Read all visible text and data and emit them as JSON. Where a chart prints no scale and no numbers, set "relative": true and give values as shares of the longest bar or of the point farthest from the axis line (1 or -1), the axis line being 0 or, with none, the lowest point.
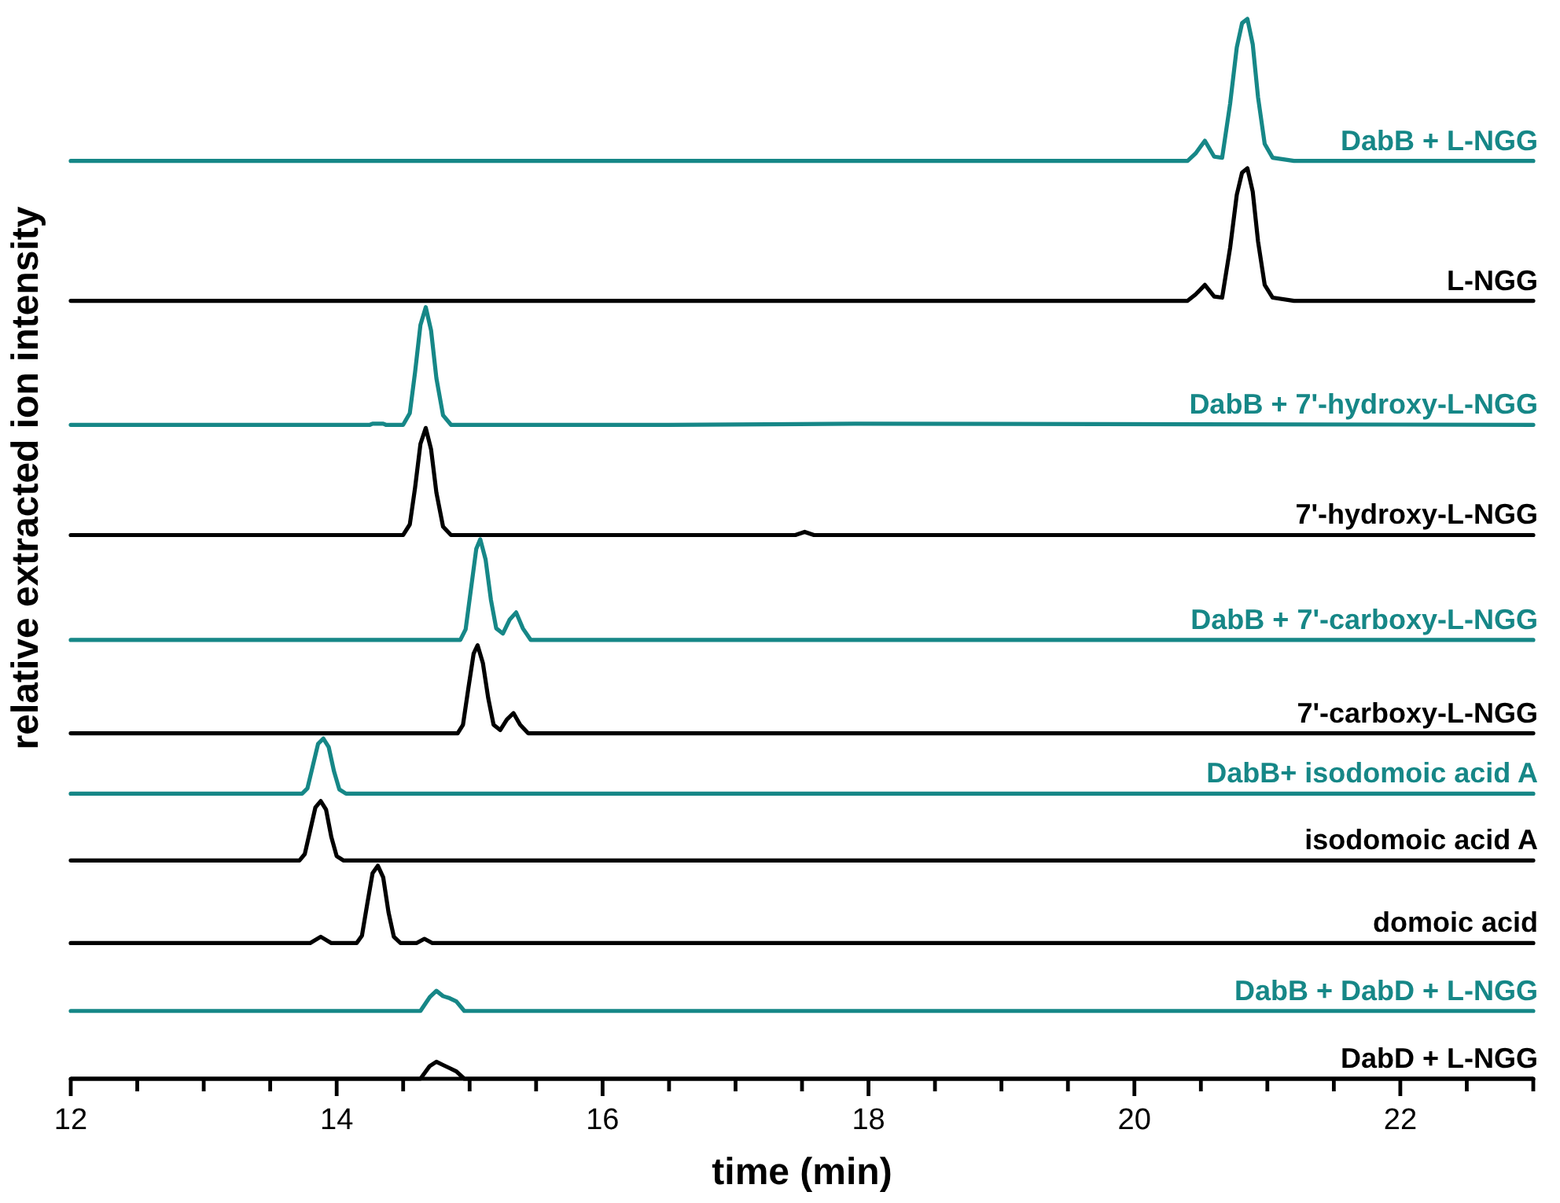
{
  "chart_data": {
    "type": "line",
    "relative": true,
    "xlim": [
      12,
      23
    ],
    "xticks": [
      12,
      {
        "value": 12.5,
        "label": null
      },
      {
        "value": 13,
        "label": null
      },
      {
        "value": 13.5,
        "label": null
      },
      14,
      {
        "value": 14.5,
        "label": null
      },
      {
        "value": 15,
        "label": null
      },
      {
        "value": 15.5,
        "label": null
      },
      16,
      {
        "value": 16.5,
        "label": null
      },
      {
        "value": 17,
        "label": null
      },
      {
        "value": 17.5,
        "label": null
      },
      18,
      {
        "value": 18.5,
        "label": null
      },
      {
        "value": 19,
        "label": null
      },
      {
        "value": 19.5,
        "label": null
      },
      20,
      {
        "value": 20.5,
        "label": null
      },
      {
        "value": 21,
        "label": null
      },
      {
        "value": 21.5,
        "label": null
      },
      22,
      {
        "value": 22.5,
        "label": null
      },
      {
        "value": 23,
        "label": null
      }
    ],
    "xlabel": "time (min)",
    "ylabel": "relative extracted ion intensity",
    "series": [
      {
        "name": "DabB + L-NGG",
        "color": "#168787",
        "x": [
          12,
          20.4,
          20.46,
          20.53,
          20.6,
          20.66,
          20.72,
          20.77,
          20.81,
          20.85,
          20.89,
          20.93,
          20.98,
          21.04,
          21.2,
          23
        ],
        "values": [
          0.866,
          0.866,
          0.873,
          0.885,
          0.87,
          0.869,
          0.92,
          0.973,
          0.996,
          1,
          0.976,
          0.926,
          0.882,
          0.869,
          0.866,
          0.866
        ]
      },
      {
        "name": "L-NGG",
        "color": "#000000",
        "x": [
          12,
          20.4,
          20.46,
          20.53,
          20.6,
          20.66,
          20.72,
          20.77,
          20.81,
          20.85,
          20.89,
          20.93,
          20.98,
          21.04,
          21.2,
          23
        ],
        "values": [
          0.734,
          0.734,
          0.74,
          0.749,
          0.738,
          0.737,
          0.784,
          0.834,
          0.855,
          0.859,
          0.837,
          0.79,
          0.749,
          0.737,
          0.734,
          0.734
        ]
      },
      {
        "name": "DabB + 7'-hydroxy-L-NGG",
        "color": "#168787",
        "x": [
          12,
          14.25,
          14.27,
          14.35,
          14.37,
          14.5,
          14.55,
          14.59,
          14.63,
          14.67,
          14.71,
          14.75,
          14.8,
          14.86,
          16.3,
          16.5,
          17.9,
          23
        ],
        "values": [
          0.617,
          0.617,
          0.618,
          0.618,
          0.617,
          0.617,
          0.628,
          0.667,
          0.711,
          0.728,
          0.706,
          0.661,
          0.626,
          0.617,
          0.617,
          0.617,
          0.618,
          0.617
        ]
      },
      {
        "name": "7'-hydroxy-L-NGG",
        "color": "#000000",
        "x": [
          12,
          14.5,
          14.55,
          14.59,
          14.63,
          14.67,
          14.71,
          14.75,
          14.8,
          14.86,
          17.45,
          17.52,
          17.59,
          23
        ],
        "values": [
          0.513,
          0.513,
          0.523,
          0.558,
          0.599,
          0.614,
          0.594,
          0.553,
          0.521,
          0.513,
          0.513,
          0.516,
          0.513,
          0.513
        ]
      },
      {
        "name": "DabB + 7'-carboxy-L-NGG",
        "color": "#168787",
        "x": [
          12,
          14.93,
          14.97,
          15.01,
          15.05,
          15.08,
          15.12,
          15.16,
          15.2,
          15.25,
          15.3,
          15.35,
          15.4,
          15.46,
          23
        ],
        "values": [
          0.414,
          0.414,
          0.424,
          0.462,
          0.5,
          0.509,
          0.49,
          0.452,
          0.425,
          0.42,
          0.433,
          0.44,
          0.425,
          0.414,
          0.414
        ]
      },
      {
        "name": "7'-carboxy-L-NGG",
        "color": "#000000",
        "x": [
          12,
          14.91,
          14.95,
          14.99,
          15.03,
          15.06,
          15.1,
          15.14,
          15.18,
          15.23,
          15.28,
          15.33,
          15.38,
          15.44,
          23
        ],
        "values": [
          0.326,
          0.326,
          0.334,
          0.368,
          0.401,
          0.409,
          0.392,
          0.359,
          0.334,
          0.329,
          0.339,
          0.345,
          0.334,
          0.326,
          0.326
        ]
      },
      {
        "name": "DabB+ isodomoic acid A",
        "color": "#168787",
        "x": [
          12,
          13.74,
          13.78,
          13.82,
          13.86,
          13.9,
          13.94,
          13.98,
          14.02,
          14.07,
          23
        ],
        "values": [
          0.269,
          0.269,
          0.274,
          0.295,
          0.316,
          0.321,
          0.313,
          0.29,
          0.273,
          0.269,
          0.269
        ]
      },
      {
        "name": "isodomoic acid A",
        "color": "#000000",
        "x": [
          12,
          13.72,
          13.76,
          13.8,
          13.84,
          13.88,
          13.92,
          13.96,
          14,
          14.05,
          23
        ],
        "values": [
          0.206,
          0.206,
          0.212,
          0.234,
          0.256,
          0.262,
          0.254,
          0.228,
          0.21,
          0.206,
          0.206
        ]
      },
      {
        "name": "domoic acid",
        "color": "#000000",
        "x": [
          12,
          13.8,
          13.88,
          13.96,
          14.15,
          14.19,
          14.23,
          14.27,
          14.31,
          14.35,
          14.39,
          14.43,
          14.48,
          14.6,
          14.66,
          14.72,
          14.85,
          23
        ],
        "values": [
          0.128,
          0.128,
          0.134,
          0.128,
          0.128,
          0.135,
          0.165,
          0.194,
          0.201,
          0.19,
          0.157,
          0.134,
          0.128,
          0.128,
          0.132,
          0.128,
          0.128,
          0.128
        ]
      },
      {
        "name": "DabB + DabD + L-NGG",
        "color": "#168787",
        "x": [
          12,
          14.63,
          14.7,
          14.75,
          14.8,
          14.85,
          14.9,
          14.96,
          23
        ],
        "values": [
          0.064,
          0.064,
          0.077,
          0.083,
          0.078,
          0.076,
          0.073,
          0.064,
          0.064
        ]
      },
      {
        "name": "DabD + L-NGG",
        "color": "#000000",
        "x": [
          12,
          14.63,
          14.7,
          14.75,
          14.8,
          14.85,
          14.9,
          14.96,
          23
        ],
        "values": [
          0,
          0,
          0.012,
          0.016,
          0.013,
          0.01,
          0.007,
          0,
          0
        ]
      }
    ]
  }
}
